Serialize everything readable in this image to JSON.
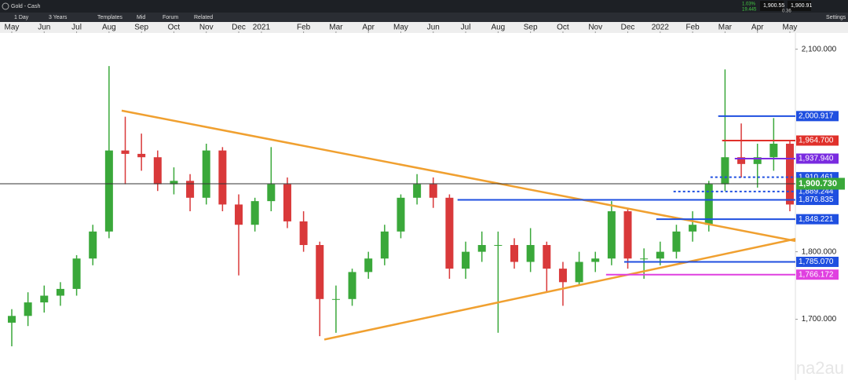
{
  "toolbar": {
    "instrument": "Gold - Cash",
    "interval": "1 Day",
    "range": "3 Years",
    "buttons": [
      "Templates",
      "Mid",
      "Forum",
      "Related"
    ],
    "change_pct": "1.03%",
    "change": "19.445",
    "bid": "1,900.55",
    "ask": "1,900.91",
    "spread": "0.36",
    "settings": "Settings"
  },
  "watermark": "na2au",
  "chart_data": {
    "type": "candlestick",
    "title": "Gold - Cash",
    "xlim": [
      -0.363,
      24.17
    ],
    "ylim": [
      1610,
      2124
    ],
    "xticks": [
      {
        "value": 0,
        "label": "May"
      },
      {
        "value": 1,
        "label": "Jun"
      },
      {
        "value": 2,
        "label": "Jul"
      },
      {
        "value": 3,
        "label": "Aug"
      },
      {
        "value": 4,
        "label": "Sep"
      },
      {
        "value": 5,
        "label": "Oct"
      },
      {
        "value": 6,
        "label": "Nov"
      },
      {
        "value": 7,
        "label": "Dec"
      },
      {
        "value": 7.7,
        "label": "2021"
      },
      {
        "value": 9,
        "label": "Feb"
      },
      {
        "value": 10,
        "label": "Mar"
      },
      {
        "value": 11,
        "label": "Apr"
      },
      {
        "value": 12,
        "label": "May"
      },
      {
        "value": 13,
        "label": "Jun"
      },
      {
        "value": 14,
        "label": "Jul"
      },
      {
        "value": 15,
        "label": "Aug"
      },
      {
        "value": 16,
        "label": "Sep"
      },
      {
        "value": 17,
        "label": "Oct"
      },
      {
        "value": 18,
        "label": "Nov"
      },
      {
        "value": 19,
        "label": "Dec"
      },
      {
        "value": 20,
        "label": "2022"
      },
      {
        "value": 21,
        "label": "Feb"
      },
      {
        "value": 22,
        "label": "Mar"
      },
      {
        "value": 23,
        "label": "Apr"
      },
      {
        "value": 24,
        "label": "May"
      }
    ],
    "yticks": [
      {
        "value": 1700,
        "label": "1,700.000"
      },
      {
        "value": 1800,
        "label": "1,800.000"
      },
      {
        "value": 2100,
        "label": "2,100.000"
      }
    ],
    "up_color": "#3aa83a",
    "down_color": "#d9393a",
    "x": [
      0,
      0.5,
      1,
      1.5,
      2,
      2.5,
      3,
      3.5,
      4,
      4.5,
      5,
      5.5,
      6,
      6.5,
      7,
      7.5,
      8,
      8.5,
      9,
      9.5,
      10,
      10.5,
      11,
      11.5,
      12,
      12.5,
      13,
      13.5,
      14,
      14.5,
      15,
      15.5,
      16,
      16.5,
      17,
      17.5,
      18,
      18.5,
      19,
      19.5,
      20,
      20.5,
      21,
      21.5,
      22,
      22.5,
      23,
      23.5,
      24
    ],
    "open": [
      1695,
      1705,
      1725,
      1735,
      1745,
      1790,
      1830,
      1950,
      1945,
      1940,
      1900,
      1905,
      1880,
      1950,
      1870,
      1840,
      1875,
      1900,
      1845,
      1810,
      1730,
      1730,
      1770,
      1790,
      1830,
      1880,
      1900,
      1880,
      1775,
      1800,
      1810,
      1810,
      1785,
      1810,
      1775,
      1755,
      1785,
      1790,
      1860,
      1790,
      1790,
      1800,
      1830,
      1840,
      1900,
      1940,
      1930,
      1940,
      1960
    ],
    "high": [
      1715,
      1740,
      1750,
      1755,
      1795,
      1840,
      2075,
      2000,
      1975,
      1950,
      1925,
      1915,
      1960,
      1955,
      1885,
      1880,
      1955,
      1910,
      1860,
      1815,
      1750,
      1775,
      1800,
      1840,
      1885,
      1915,
      1910,
      1885,
      1815,
      1830,
      1830,
      1820,
      1835,
      1815,
      1785,
      1800,
      1800,
      1875,
      1865,
      1805,
      1815,
      1840,
      1860,
      1905,
      2070,
      1990,
      1960,
      1998,
      1965
    ],
    "low": [
      1660,
      1690,
      1710,
      1720,
      1735,
      1780,
      1820,
      1900,
      1920,
      1890,
      1885,
      1860,
      1870,
      1860,
      1765,
      1830,
      1860,
      1835,
      1800,
      1675,
      1680,
      1720,
      1760,
      1780,
      1820,
      1870,
      1865,
      1760,
      1760,
      1785,
      1680,
      1775,
      1770,
      1740,
      1720,
      1750,
      1770,
      1780,
      1775,
      1760,
      1780,
      1790,
      1815,
      1830,
      1890,
      1910,
      1895,
      1920,
      1860
    ],
    "close": [
      1705,
      1725,
      1735,
      1745,
      1790,
      1830,
      1950,
      1945,
      1940,
      1900,
      1905,
      1880,
      1950,
      1870,
      1840,
      1875,
      1900,
      1845,
      1810,
      1730,
      1730,
      1770,
      1790,
      1830,
      1880,
      1900,
      1880,
      1775,
      1800,
      1810,
      1810,
      1785,
      1810,
      1775,
      1755,
      1785,
      1790,
      1860,
      1790,
      1790,
      1800,
      1830,
      1840,
      1900,
      1940,
      1930,
      1940,
      1960,
      1870
    ],
    "trendlines": [
      {
        "color": "#f0a030",
        "x": [
          3.39,
          24.17
        ],
        "y": [
          2009,
          1816
        ]
      },
      {
        "color": "#f0a030",
        "x": [
          9.64,
          24.17
        ],
        "y": [
          1670,
          1819
        ]
      }
    ],
    "levels": [
      {
        "value": 2000.917,
        "label": "2,000.917",
        "color": "#1f4fe0",
        "from": 21.79,
        "dashed": false
      },
      {
        "value": 1964.7,
        "label": "1,964.700",
        "color": "#e0302a",
        "from": 21.91,
        "dashed": false
      },
      {
        "value": 1937.94,
        "label": "1,937.940",
        "color": "#7a2be0",
        "from": 22.3,
        "dashed": false
      },
      {
        "value": 1910.461,
        "label": "1,910.461",
        "color": "#1f4fe0",
        "from": 21.55,
        "dashed": true
      },
      {
        "value": 1889.244,
        "label": "1,889.244",
        "color": "#1f4fe0",
        "from": 20.41,
        "dashed": true
      },
      {
        "value": 1876.835,
        "label": "1,876.835",
        "color": "#1f4fe0",
        "from": 13.75,
        "dashed": false
      },
      {
        "value": 1848.221,
        "label": "1,848.221",
        "color": "#1f4fe0",
        "from": 19.88,
        "dashed": false
      },
      {
        "value": 1785.07,
        "label": "1,785.070",
        "color": "#1f4fe0",
        "from": 18.89,
        "dashed": false
      },
      {
        "value": 1766.172,
        "label": "1,766.172",
        "color": "#e040e0",
        "from": 18.33,
        "dashed": false
      }
    ],
    "last_price": {
      "value": 1900.73,
      "label": "1,900.730",
      "color": "#3aa83a"
    }
  }
}
